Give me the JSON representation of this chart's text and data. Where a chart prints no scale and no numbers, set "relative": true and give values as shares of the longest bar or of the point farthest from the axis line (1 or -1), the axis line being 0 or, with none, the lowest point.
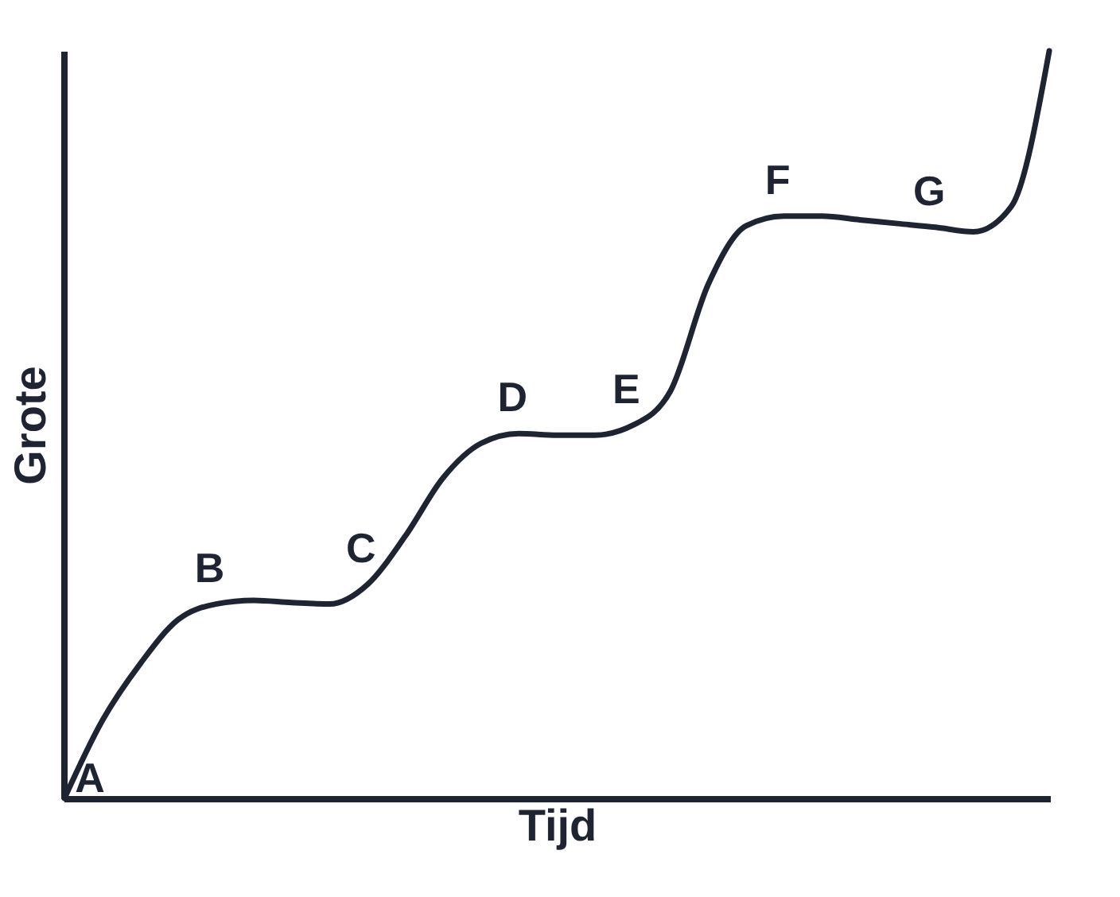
{
  "chart_data": {
    "type": "line",
    "relative": true,
    "xlabel": "Tijd",
    "ylabel": "Grote",
    "categories": [
      null,
      null,
      null,
      null,
      null,
      null,
      null,
      null,
      null,
      null,
      null,
      null,
      null,
      null,
      null,
      null,
      null,
      null,
      null,
      null,
      null,
      null,
      null,
      null,
      null,
      null,
      null
    ],
    "series": [
      {
        "color": "#1f2433",
        "values": [
          0,
          0.104,
          0.18,
          0.239,
          0.26,
          0.265,
          0.262,
          0.26,
          0.286,
          0.351,
          0.429,
          0.475,
          0.488,
          0.486,
          0.486,
          0.499,
          0.545,
          0.688,
          0.766,
          0.779,
          0.779,
          0.774,
          0.769,
          0.764,
          0.758,
          0.792,
          1
        ]
      }
    ],
    "annotations": [
      "A",
      {
        "text": "B",
        "y": 0.26
      },
      {
        "text": "C",
        "y": 0.286
      },
      {
        "text": "D",
        "y": 0.488
      },
      {
        "text": "E",
        "y": 0.499
      },
      {
        "text": "F",
        "y": 0.779
      },
      {
        "text": "G",
        "y": 0.764
      }
    ],
    "grid": false,
    "marker": "none",
    "line_style": "solid"
  }
}
